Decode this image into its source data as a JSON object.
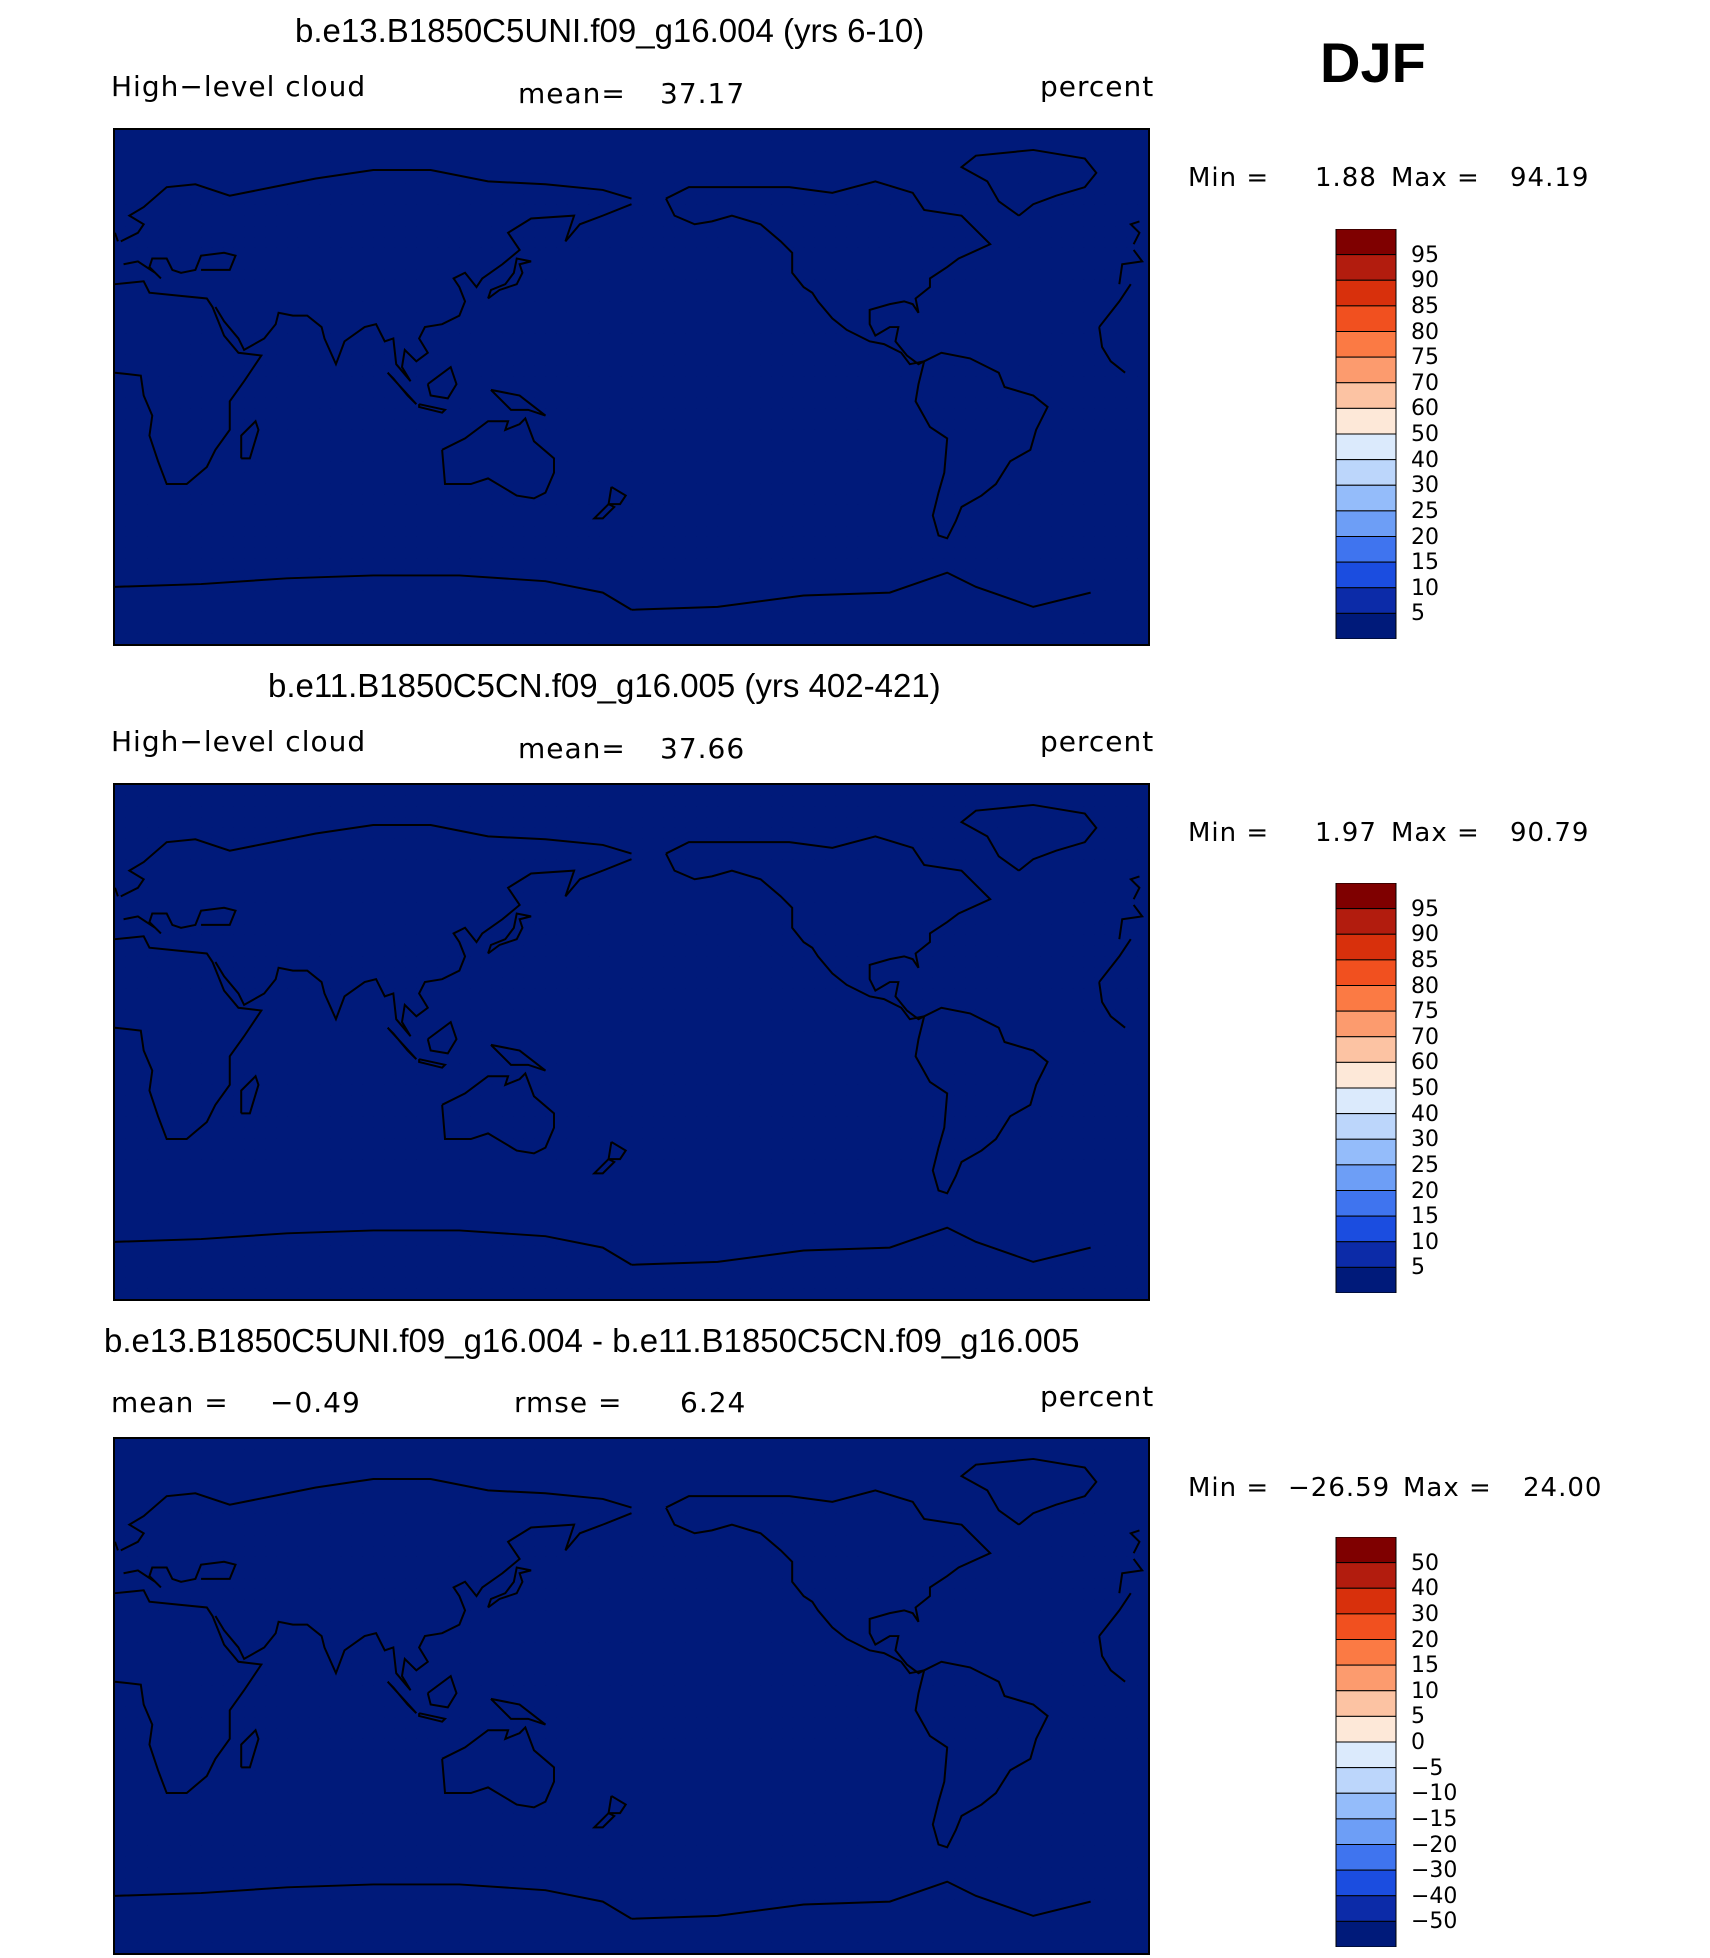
{
  "season": "DJF",
  "chart_data": [
    {
      "type": "heatmap",
      "title": "b.e13.B1850C5UNI.f09_g16.004 (yrs 6-10)",
      "variable": "High−level cloud",
      "mean_label": "mean=",
      "mean_value": "37.17",
      "units": "percent",
      "min_label": "Min =",
      "min_value": "1.88",
      "max_label": "Max =",
      "max_value": "94.19",
      "levels": [
        "95",
        "90",
        "85",
        "80",
        "75",
        "70",
        "60",
        "50",
        "40",
        "30",
        "25",
        "20",
        "15",
        "10",
        "5"
      ],
      "colors": [
        "#7f0000",
        "#b21c0e",
        "#d8300c",
        "#f1501f",
        "#fb7a44",
        "#fc9b6e",
        "#fcc3a3",
        "#fde8d8",
        "#dbeafc",
        "#bcd6fb",
        "#94bcfa",
        "#6d9ef6",
        "#3f74ef",
        "#1b4de0",
        "#0c2ba8",
        "#001a7a"
      ],
      "field": "model"
    },
    {
      "type": "heatmap",
      "title": "b.e11.B1850C5CN.f09_g16.005 (yrs 402-421)",
      "variable": "High−level cloud",
      "mean_label": "mean=",
      "mean_value": "37.66",
      "units": "percent",
      "min_label": "Min =",
      "min_value": "1.97",
      "max_label": "Max =",
      "max_value": "90.79",
      "levels": [
        "95",
        "90",
        "85",
        "80",
        "75",
        "70",
        "60",
        "50",
        "40",
        "30",
        "25",
        "20",
        "15",
        "10",
        "5"
      ],
      "colors": [
        "#7f0000",
        "#b21c0e",
        "#d8300c",
        "#f1501f",
        "#fb7a44",
        "#fc9b6e",
        "#fcc3a3",
        "#fde8d8",
        "#dbeafc",
        "#bcd6fb",
        "#94bcfa",
        "#6d9ef6",
        "#3f74ef",
        "#1b4de0",
        "#0c2ba8",
        "#001a7a"
      ],
      "field": "control"
    },
    {
      "type": "heatmap",
      "title": "b.e13.B1850C5UNI.f09_g16.004 - b.e11.B1850C5CN.f09_g16.005",
      "mean_label": "mean =",
      "mean_value": "−0.49",
      "rmse_label": "rmse =",
      "rmse_value": "6.24",
      "units": "percent",
      "min_label": "Min =",
      "min_value": "−26.59",
      "max_label": "Max =",
      "max_value": "24.00",
      "levels": [
        "50",
        "40",
        "30",
        "20",
        "15",
        "10",
        "5",
        "0",
        "−5",
        "−10",
        "−15",
        "−20",
        "−30",
        "−40",
        "−50"
      ],
      "colors": [
        "#7f0000",
        "#b21c0e",
        "#d8300c",
        "#f1501f",
        "#fb7a44",
        "#fc9b6e",
        "#fcc3a3",
        "#fde8d8",
        "#dbeafc",
        "#bcd6fb",
        "#94bcfa",
        "#6d9ef6",
        "#3f74ef",
        "#1b4de0",
        "#0c2ba8",
        "#001a7a"
      ],
      "field": "difference"
    }
  ]
}
